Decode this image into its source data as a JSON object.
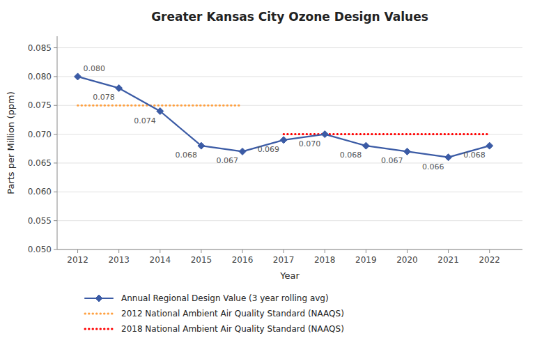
{
  "chart_data": {
    "type": "line",
    "title": "Greater Kansas City Ozone Design Values",
    "x_label": "Year",
    "y_label": "Parts per Million (ppm)",
    "x": [
      2012,
      2013,
      2014,
      2015,
      2016,
      2017,
      2018,
      2019,
      2020,
      2021,
      2022
    ],
    "xlim": [
      2011.5,
      2022.8
    ],
    "xticks": [
      2012,
      2013,
      2014,
      2015,
      2016,
      2017,
      2018,
      2019,
      2020,
      2021,
      2022
    ],
    "ylim": [
      0.05,
      0.087
    ],
    "yticks": [
      {
        "value": 0.05,
        "label": "0.050"
      },
      {
        "value": 0.055,
        "label": "0.055"
      },
      {
        "value": 0.06,
        "label": "0.060"
      },
      {
        "value": 0.065,
        "label": "0.065"
      },
      {
        "value": 0.07,
        "label": "0.070"
      },
      {
        "value": 0.075,
        "label": "0.075"
      },
      {
        "value": 0.08,
        "label": "0.080"
      },
      {
        "value": 0.085,
        "label": "0.085"
      }
    ],
    "grid": true,
    "legend": "bottom",
    "data_labels": true,
    "series": [
      {
        "name": "Annual Regional Design Value (3 year rolling avg)",
        "color": "#3B5BA5",
        "marker": "diamond",
        "line_style": "solid",
        "values": [
          0.08,
          0.078,
          0.074,
          0.068,
          0.067,
          0.069,
          0.07,
          0.068,
          0.067,
          0.066,
          0.068
        ],
        "value_labels": [
          "0.080",
          "0.078",
          "0.074",
          "0.068",
          "0.067",
          "0.069",
          "0.070",
          "0.068",
          "0.067",
          "0.066",
          "0.068"
        ]
      },
      {
        "name": "2012 National Ambient Air Quality Standard (NAAQS)",
        "color": "#FFA040",
        "line_style": "dotted",
        "values": [
          0.075,
          0.075,
          0.075,
          0.075,
          0.075,
          null,
          null,
          null,
          null,
          null,
          null
        ]
      },
      {
        "name": "2018 National Ambient Air Quality Standard (NAAQS)",
        "color": "#FF0000",
        "line_style": "dotted",
        "values": [
          null,
          null,
          null,
          null,
          null,
          0.07,
          0.07,
          0.07,
          0.07,
          0.07,
          0.07
        ]
      }
    ]
  }
}
